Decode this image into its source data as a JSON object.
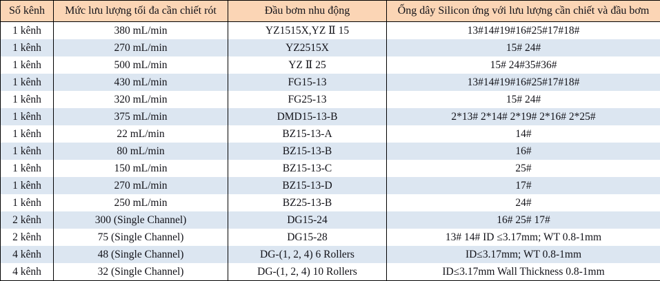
{
  "colors": {
    "header_bg": "#FBD5B5",
    "alt_row_bg": "#DCE6F1",
    "row_bg": "#FFFFFF",
    "border": "#000000",
    "text": "#121218"
  },
  "table": {
    "columns": [
      "Số kênh",
      "Mức lưu lượng tối đa cần chiết rót",
      "Đầu bơm nhu động",
      "Ống dây Silicon ứng với lưu lượng cần chiết và đầu bơm"
    ],
    "rows": [
      [
        "1 kênh",
        "380 mL/min",
        "YZ1515X,YZ Ⅱ 15",
        "13#14#19#16#25#17#18#"
      ],
      [
        "1 kênh",
        "270 mL/min",
        "YZ2515X",
        "15# 24#"
      ],
      [
        "1 kênh",
        "500 mL/min",
        "YZ Ⅱ 25",
        "15# 24#35#36#"
      ],
      [
        "1 kênh",
        "430 mL/min",
        "FG15-13",
        "13#14#19#16#25#17#18#"
      ],
      [
        "1 kênh",
        "320 mL/min",
        "FG25-13",
        "15# 24#"
      ],
      [
        "1 kênh",
        "375 mL/min",
        "DMD15-13-B",
        "2*13# 2*14# 2*19# 2*16# 2*25#"
      ],
      [
        "1 kênh",
        "22 mL/min",
        "BZ15-13-A",
        "14#"
      ],
      [
        "1 kênh",
        "80 mL/min",
        "BZ15-13-B",
        "16#"
      ],
      [
        "1 kênh",
        "150 mL/min",
        "BZ15-13-C",
        "25#"
      ],
      [
        "1 kênh",
        "270 mL/min",
        "BZ15-13-D",
        "17#"
      ],
      [
        "1 kênh",
        "250 mL/min",
        "BZ25-13-B",
        "24#"
      ],
      [
        "2 kênh",
        "300 (Single Channel)",
        "DG15-24",
        "16# 25# 17#"
      ],
      [
        "2 kênh",
        "75 (Single Channel)",
        "DG15-28",
        "13# 14#  ID ≤3.17mm; WT  0.8-1mm"
      ],
      [
        "4 kênh",
        "48 (Single Channel)",
        "DG-(1, 2, 4) 6 Rollers",
        "ID≤3.17mm; WT 0.8-1mm"
      ],
      [
        "4 kênh",
        "32 (Single Channel)",
        "DG-(1, 2, 4) 10 Rollers",
        "ID≤3.17mm Wall Thickness 0.8-1mm"
      ]
    ]
  }
}
